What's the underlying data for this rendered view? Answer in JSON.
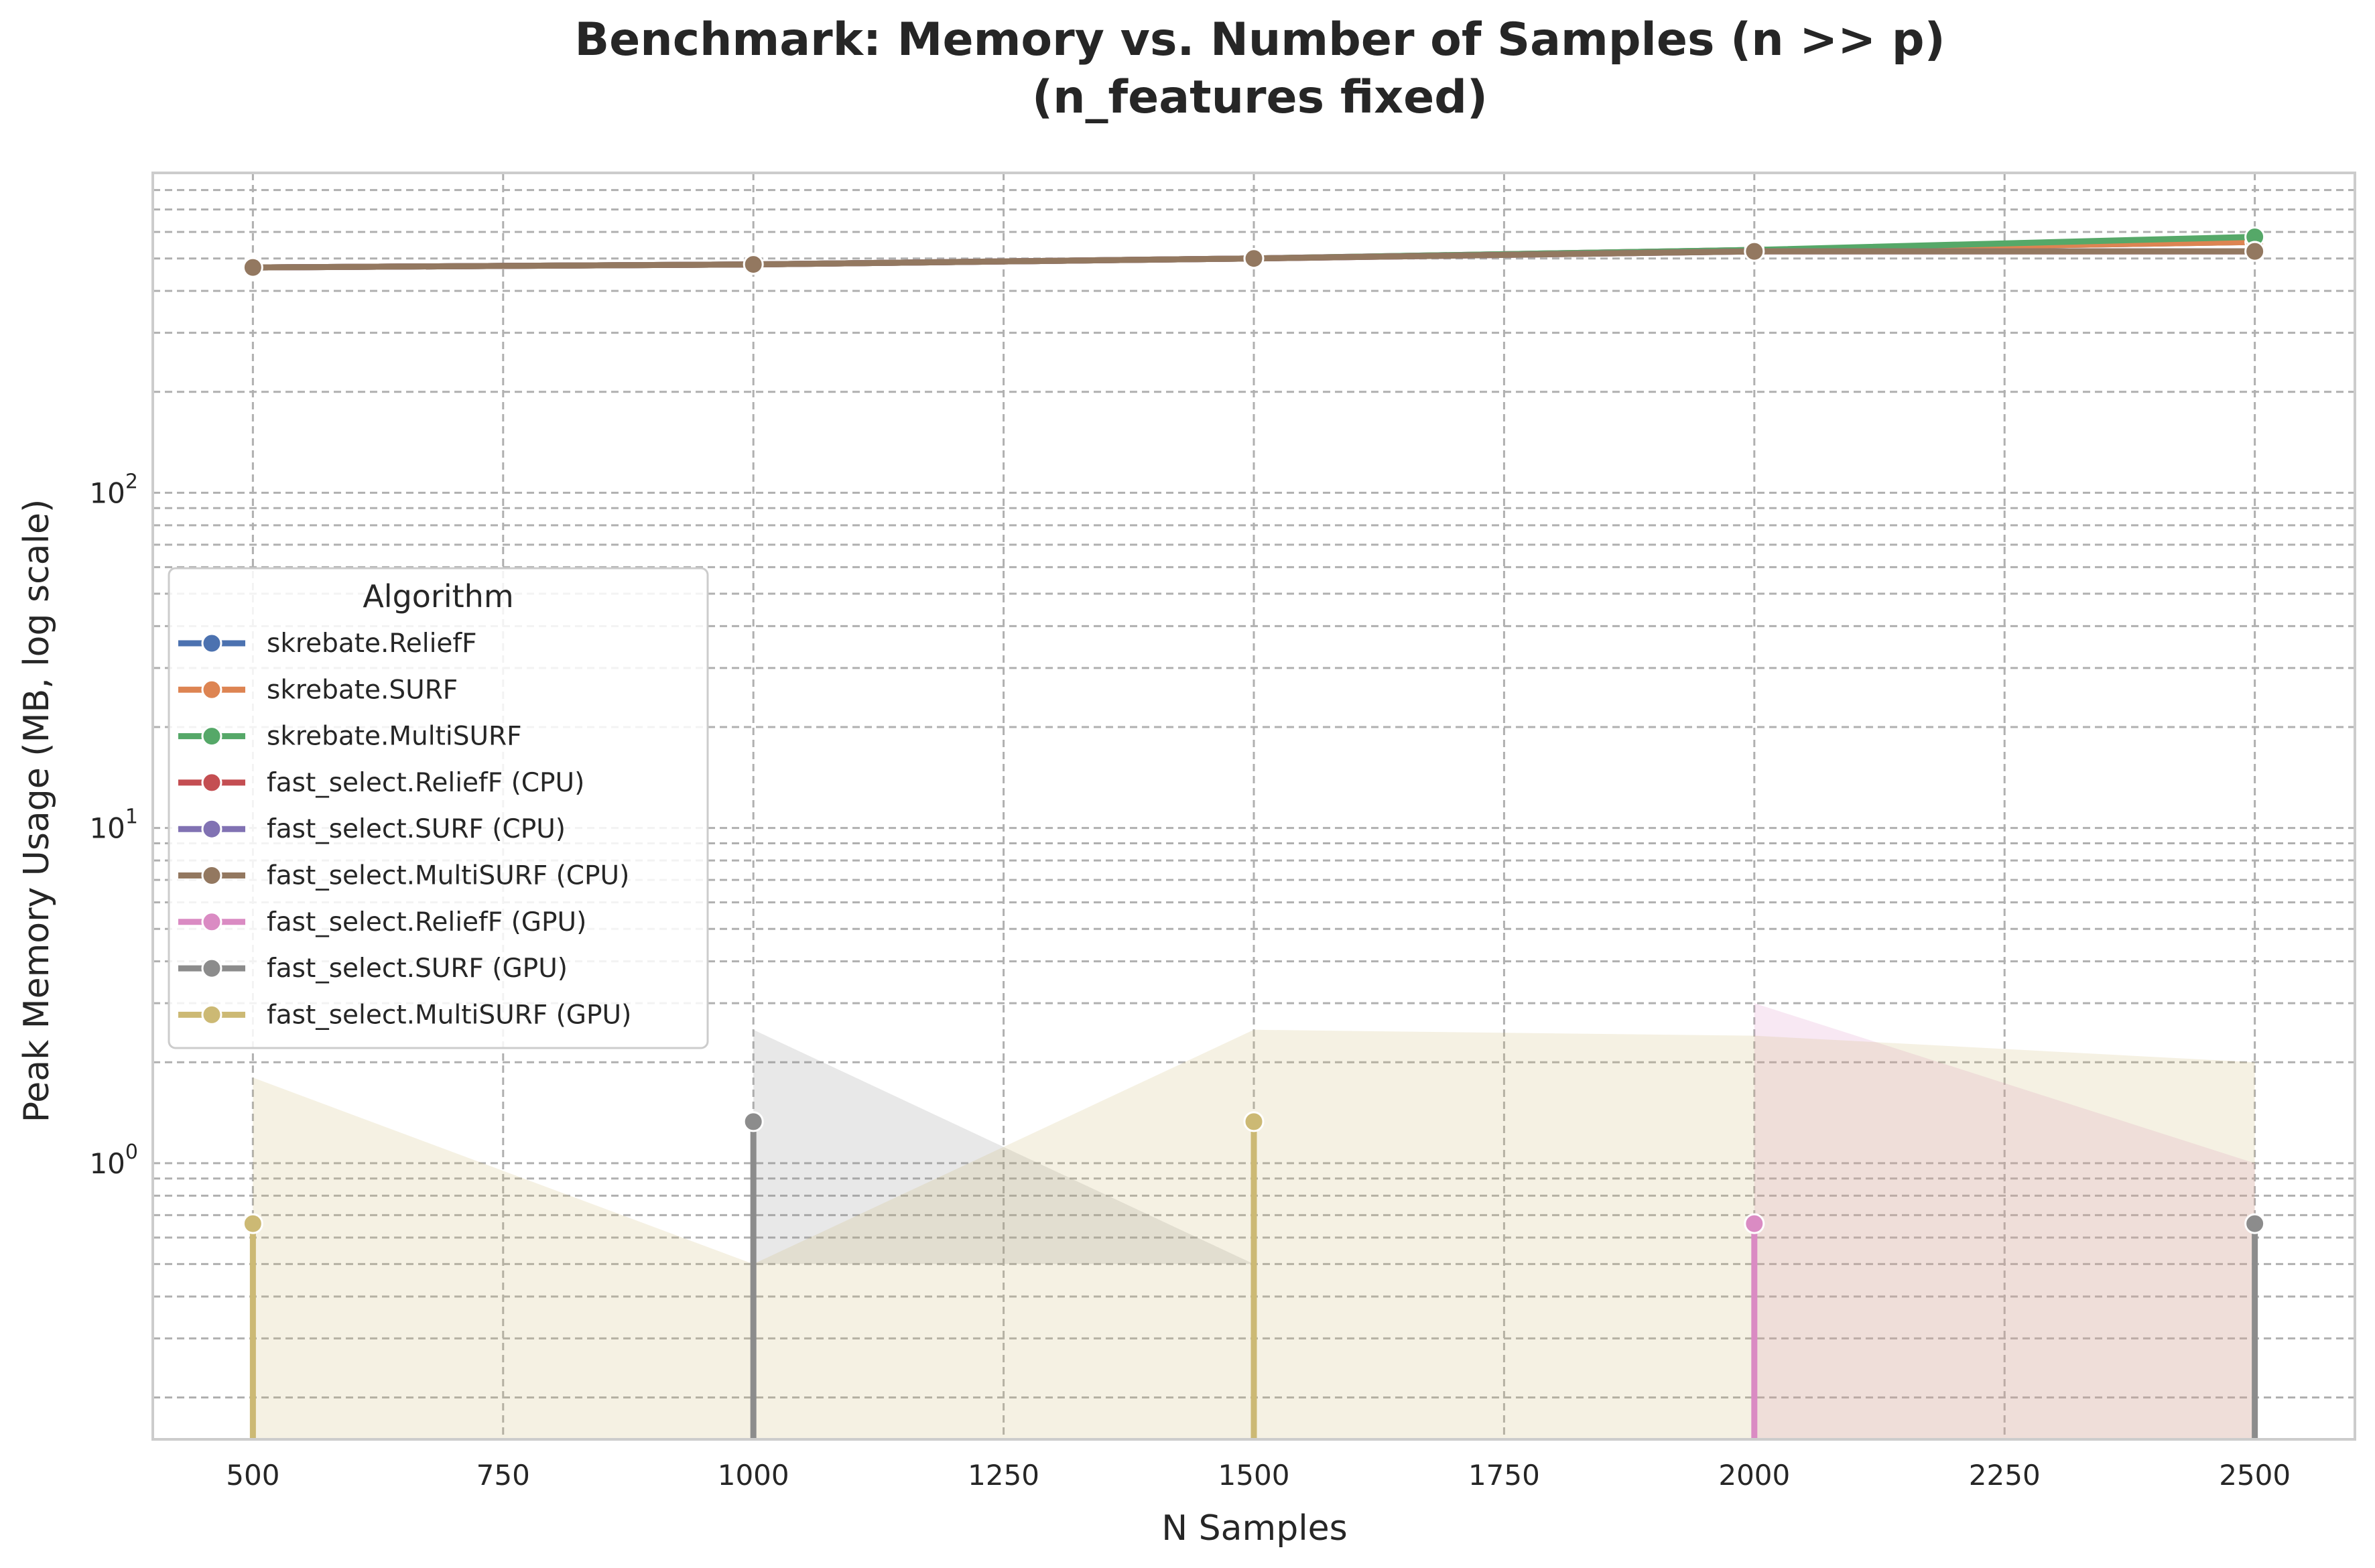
{
  "chart_data": {
    "type": "line",
    "title_lines": [
      "Benchmark: Memory vs. Number of Samples (n >> p)",
      "(n_features fixed)"
    ],
    "xlabel": "N Samples",
    "ylabel": "Peak Memory Usage (MB, log scale)",
    "x_ticks": [
      500,
      750,
      1000,
      1250,
      1500,
      1750,
      2000,
      2250,
      2500
    ],
    "xlim": [
      400,
      2600
    ],
    "y_scale": "log",
    "ylim": [
      0.15,
      900
    ],
    "y_ticks": [
      {
        "value": 1,
        "base": "10",
        "exp": "0"
      },
      {
        "value": 10,
        "base": "10",
        "exp": "1"
      },
      {
        "value": 100,
        "base": "10",
        "exp": "2"
      }
    ],
    "grid": true,
    "legend": {
      "title": "Algorithm",
      "placement": "center-left"
    },
    "baseline": 0.15,
    "series": [
      {
        "name": "skrebate.ReliefF",
        "color": "#4c72b0",
        "x": [
          500,
          1000,
          1500,
          2000,
          2500
        ],
        "y": [
          470,
          480,
          500,
          530,
          560
        ]
      },
      {
        "name": "skrebate.SURF",
        "color": "#dd8452",
        "x": [
          500,
          1000,
          1500,
          2000,
          2500
        ],
        "y": [
          470,
          480,
          500,
          530,
          560
        ]
      },
      {
        "name": "skrebate.MultiSURF",
        "color": "#55a868",
        "x": [
          500,
          1000,
          1500,
          2000,
          2500
        ],
        "y": [
          470,
          480,
          500,
          530,
          580
        ]
      },
      {
        "name": "fast_select.ReliefF (CPU)",
        "color": "#c44e52",
        "x": [
          500,
          1000,
          1500,
          2000,
          2500
        ],
        "y": [
          470,
          480,
          500,
          525,
          525
        ]
      },
      {
        "name": "fast_select.SURF (CPU)",
        "color": "#8172b3",
        "x": [
          500,
          1000,
          1500,
          2000,
          2500
        ],
        "y": [
          470,
          480,
          500,
          525,
          525
        ]
      },
      {
        "name": "fast_select.MultiSURF (CPU)",
        "color": "#937860",
        "x": [
          500,
          1000,
          1500,
          2000,
          2500
        ],
        "y": [
          470,
          480,
          500,
          525,
          525
        ]
      },
      {
        "name": "fast_select.ReliefF (GPU)",
        "color": "#da8bc3",
        "x": [
          500,
          1000,
          1500,
          2000,
          2500
        ],
        "y": [
          null,
          null,
          null,
          0.66,
          null
        ],
        "band": {
          "x": [
            2000,
            2500
          ],
          "lower": [
            0.15,
            0.15
          ],
          "upper": [
            3.0,
            1.0
          ]
        }
      },
      {
        "name": "fast_select.SURF (GPU)",
        "color": "#8c8c8c",
        "x": [
          500,
          1000,
          1500,
          2000,
          2500
        ],
        "y": [
          null,
          1.33,
          null,
          null,
          0.66
        ],
        "band": {
          "x": [
            1000,
            1500
          ],
          "lower": [
            0.5,
            0.5
          ],
          "upper": [
            2.5,
            0.5
          ]
        }
      },
      {
        "name": "fast_select.MultiSURF (GPU)",
        "color": "#ccb974",
        "x": [
          500,
          1000,
          1500,
          2000,
          2500
        ],
        "y": [
          0.66,
          null,
          1.33,
          null,
          null
        ],
        "band": {
          "x": [
            500,
            1000,
            1500,
            2000,
            2500
          ],
          "lower": [
            0.15,
            0.15,
            0.15,
            0.15,
            0.15
          ],
          "upper": [
            1.8,
            0.5,
            2.5,
            2.4,
            2.0
          ]
        }
      }
    ]
  }
}
